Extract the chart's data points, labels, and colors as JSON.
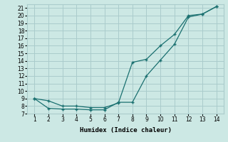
{
  "xlabel": "Humidex (Indice chaleur)",
  "background_color": "#cce8e4",
  "grid_color": "#aacccc",
  "line_color": "#1a7070",
  "line1_x": [
    1,
    2,
    3,
    4,
    5,
    6,
    7,
    8,
    9,
    10,
    11,
    12,
    13,
    14
  ],
  "line1_y": [
    9.0,
    8.7,
    8.0,
    8.0,
    7.8,
    7.8,
    8.4,
    13.8,
    14.2,
    16.0,
    17.5,
    20.0,
    20.2,
    21.2
  ],
  "line2_x": [
    1,
    2,
    3,
    4,
    5,
    6,
    7,
    8,
    9,
    10,
    11,
    12,
    13,
    14
  ],
  "line2_y": [
    9.0,
    7.7,
    7.6,
    7.6,
    7.5,
    7.5,
    8.5,
    8.5,
    12.0,
    14.1,
    16.2,
    19.8,
    20.2,
    21.2
  ],
  "xlim": [
    0.5,
    14.5
  ],
  "ylim": [
    7.0,
    21.5
  ],
  "xticks": [
    1,
    2,
    3,
    4,
    5,
    6,
    7,
    8,
    9,
    10,
    11,
    12,
    13,
    14
  ],
  "yticks": [
    7,
    8,
    9,
    10,
    11,
    12,
    13,
    14,
    15,
    16,
    17,
    18,
    19,
    20,
    21
  ]
}
